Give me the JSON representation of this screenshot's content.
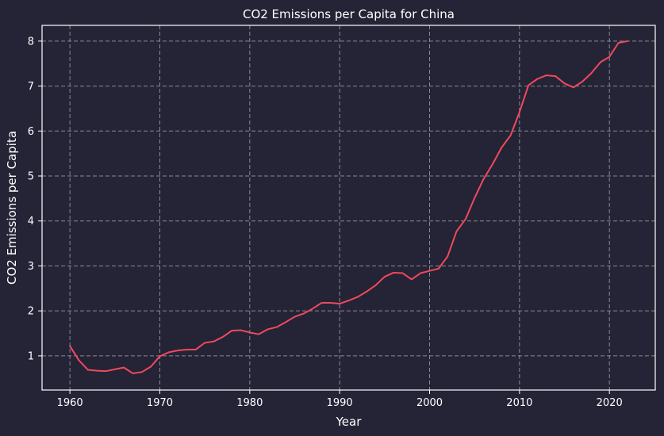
{
  "colors": {
    "background": "#252336",
    "line": "#ef4a5c",
    "grid": "#8a8a94",
    "text": "#ffffff"
  },
  "chart_data": {
    "type": "line",
    "title": "CO2 Emissions per Capita for China",
    "xlabel": "Year",
    "ylabel": "CO2 Emissions per Capita",
    "xlim": [
      1956.9,
      2025.1
    ],
    "ylim": [
      0.24,
      8.35
    ],
    "xticks": [
      1960,
      1970,
      1980,
      1990,
      2000,
      2010,
      2020
    ],
    "yticks": [
      1,
      2,
      3,
      4,
      5,
      6,
      7,
      8
    ],
    "grid": true,
    "series": [
      {
        "x": [
          1960,
          1961,
          1962,
          1963,
          1964,
          1965,
          1966,
          1967,
          1968,
          1969,
          1970,
          1971,
          1972,
          1973,
          1974,
          1975,
          1976,
          1977,
          1978,
          1979,
          1980,
          1981,
          1982,
          1983,
          1984,
          1985,
          1986,
          1987,
          1988,
          1989,
          1990,
          1991,
          1992,
          1993,
          1994,
          1995,
          1996,
          1997,
          1998,
          1999,
          2000,
          2001,
          2002,
          2003,
          2004,
          2005,
          2006,
          2007,
          2008,
          2009,
          2010,
          2011,
          2012,
          2013,
          2014,
          2015,
          2016,
          2017,
          2018,
          2019,
          2020,
          2021,
          2022
        ],
        "y": [
          1.22,
          0.9,
          0.69,
          0.67,
          0.66,
          0.7,
          0.74,
          0.61,
          0.64,
          0.76,
          0.99,
          1.08,
          1.12,
          1.14,
          1.14,
          1.29,
          1.32,
          1.42,
          1.56,
          1.57,
          1.52,
          1.48,
          1.59,
          1.64,
          1.75,
          1.87,
          1.94,
          2.05,
          2.18,
          2.18,
          2.16,
          2.23,
          2.31,
          2.43,
          2.57,
          2.76,
          2.85,
          2.84,
          2.7,
          2.84,
          2.89,
          2.94,
          3.21,
          3.77,
          4.04,
          4.51,
          4.93,
          5.26,
          5.63,
          5.9,
          6.42,
          7.02,
          7.16,
          7.24,
          7.22,
          7.06,
          6.97,
          7.1,
          7.29,
          7.53,
          7.65,
          7.96,
          8.0
        ]
      }
    ]
  }
}
